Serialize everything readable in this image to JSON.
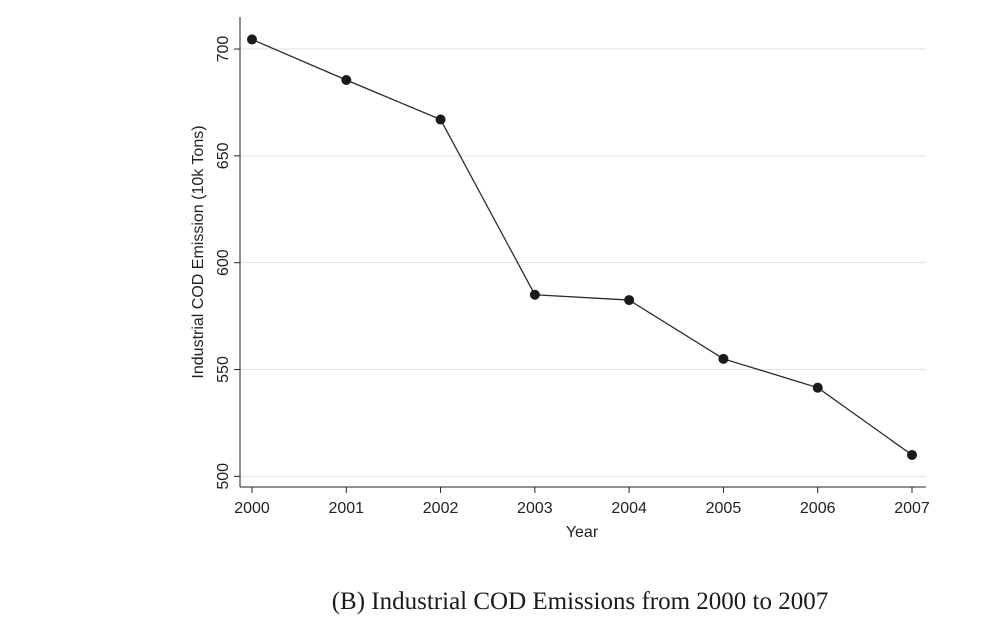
{
  "caption": "(B) Industrial COD Emissions from 2000 to 2007",
  "chart_data": {
    "type": "line",
    "title": "",
    "xlabel": "Year",
    "ylabel": "Industrial COD Emission (10k Tons)",
    "x": [
      2000,
      2001,
      2002,
      2003,
      2004,
      2005,
      2006,
      2007
    ],
    "values": [
      704.5,
      685.5,
      667,
      585,
      582.5,
      555,
      541.5,
      510
    ],
    "ylim": [
      495,
      715
    ],
    "yticks": [
      500,
      550,
      600,
      650,
      700
    ],
    "xticks": [
      "2000",
      "2001",
      "2002",
      "2003",
      "2004",
      "2005",
      "2006",
      "2007"
    ],
    "grid": "horizontal",
    "legend": "none",
    "colors": {
      "line": "#2a2a2a",
      "marker": "#1a1a1a",
      "grid": "#e3e3e3",
      "axis": "#222222"
    }
  }
}
